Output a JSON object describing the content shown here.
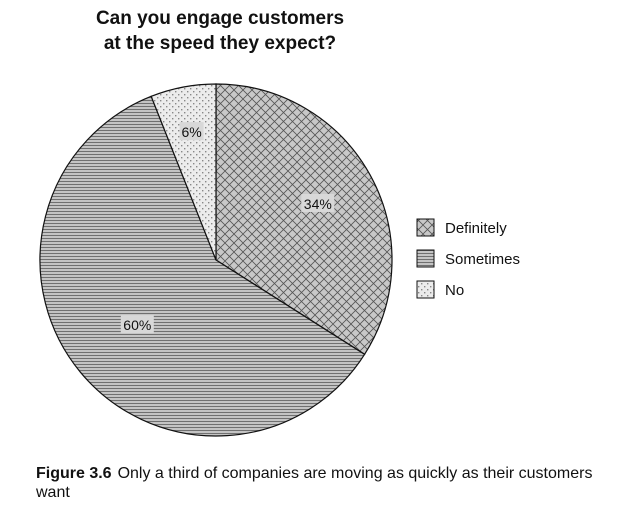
{
  "chart_data": {
    "type": "pie",
    "title_lines": [
      "Can you engage customers",
      "at the speed they expect?"
    ],
    "slices": [
      {
        "label": "Definitely",
        "value": 34,
        "display": "34%",
        "pattern": "crosshatch"
      },
      {
        "label": "Sometimes",
        "value": 60,
        "display": "60%",
        "pattern": "horizontal-lines"
      },
      {
        "label": "No",
        "value": 6,
        "display": "6%",
        "pattern": "dots"
      }
    ],
    "legend_placement": "right",
    "colors": {
      "fill": "#c8c8c8",
      "pattern": "#555555",
      "outline": "#111111"
    }
  },
  "caption": {
    "label": "Figure 3.6",
    "text": "Only a third of companies are moving as quickly as their customers want"
  }
}
